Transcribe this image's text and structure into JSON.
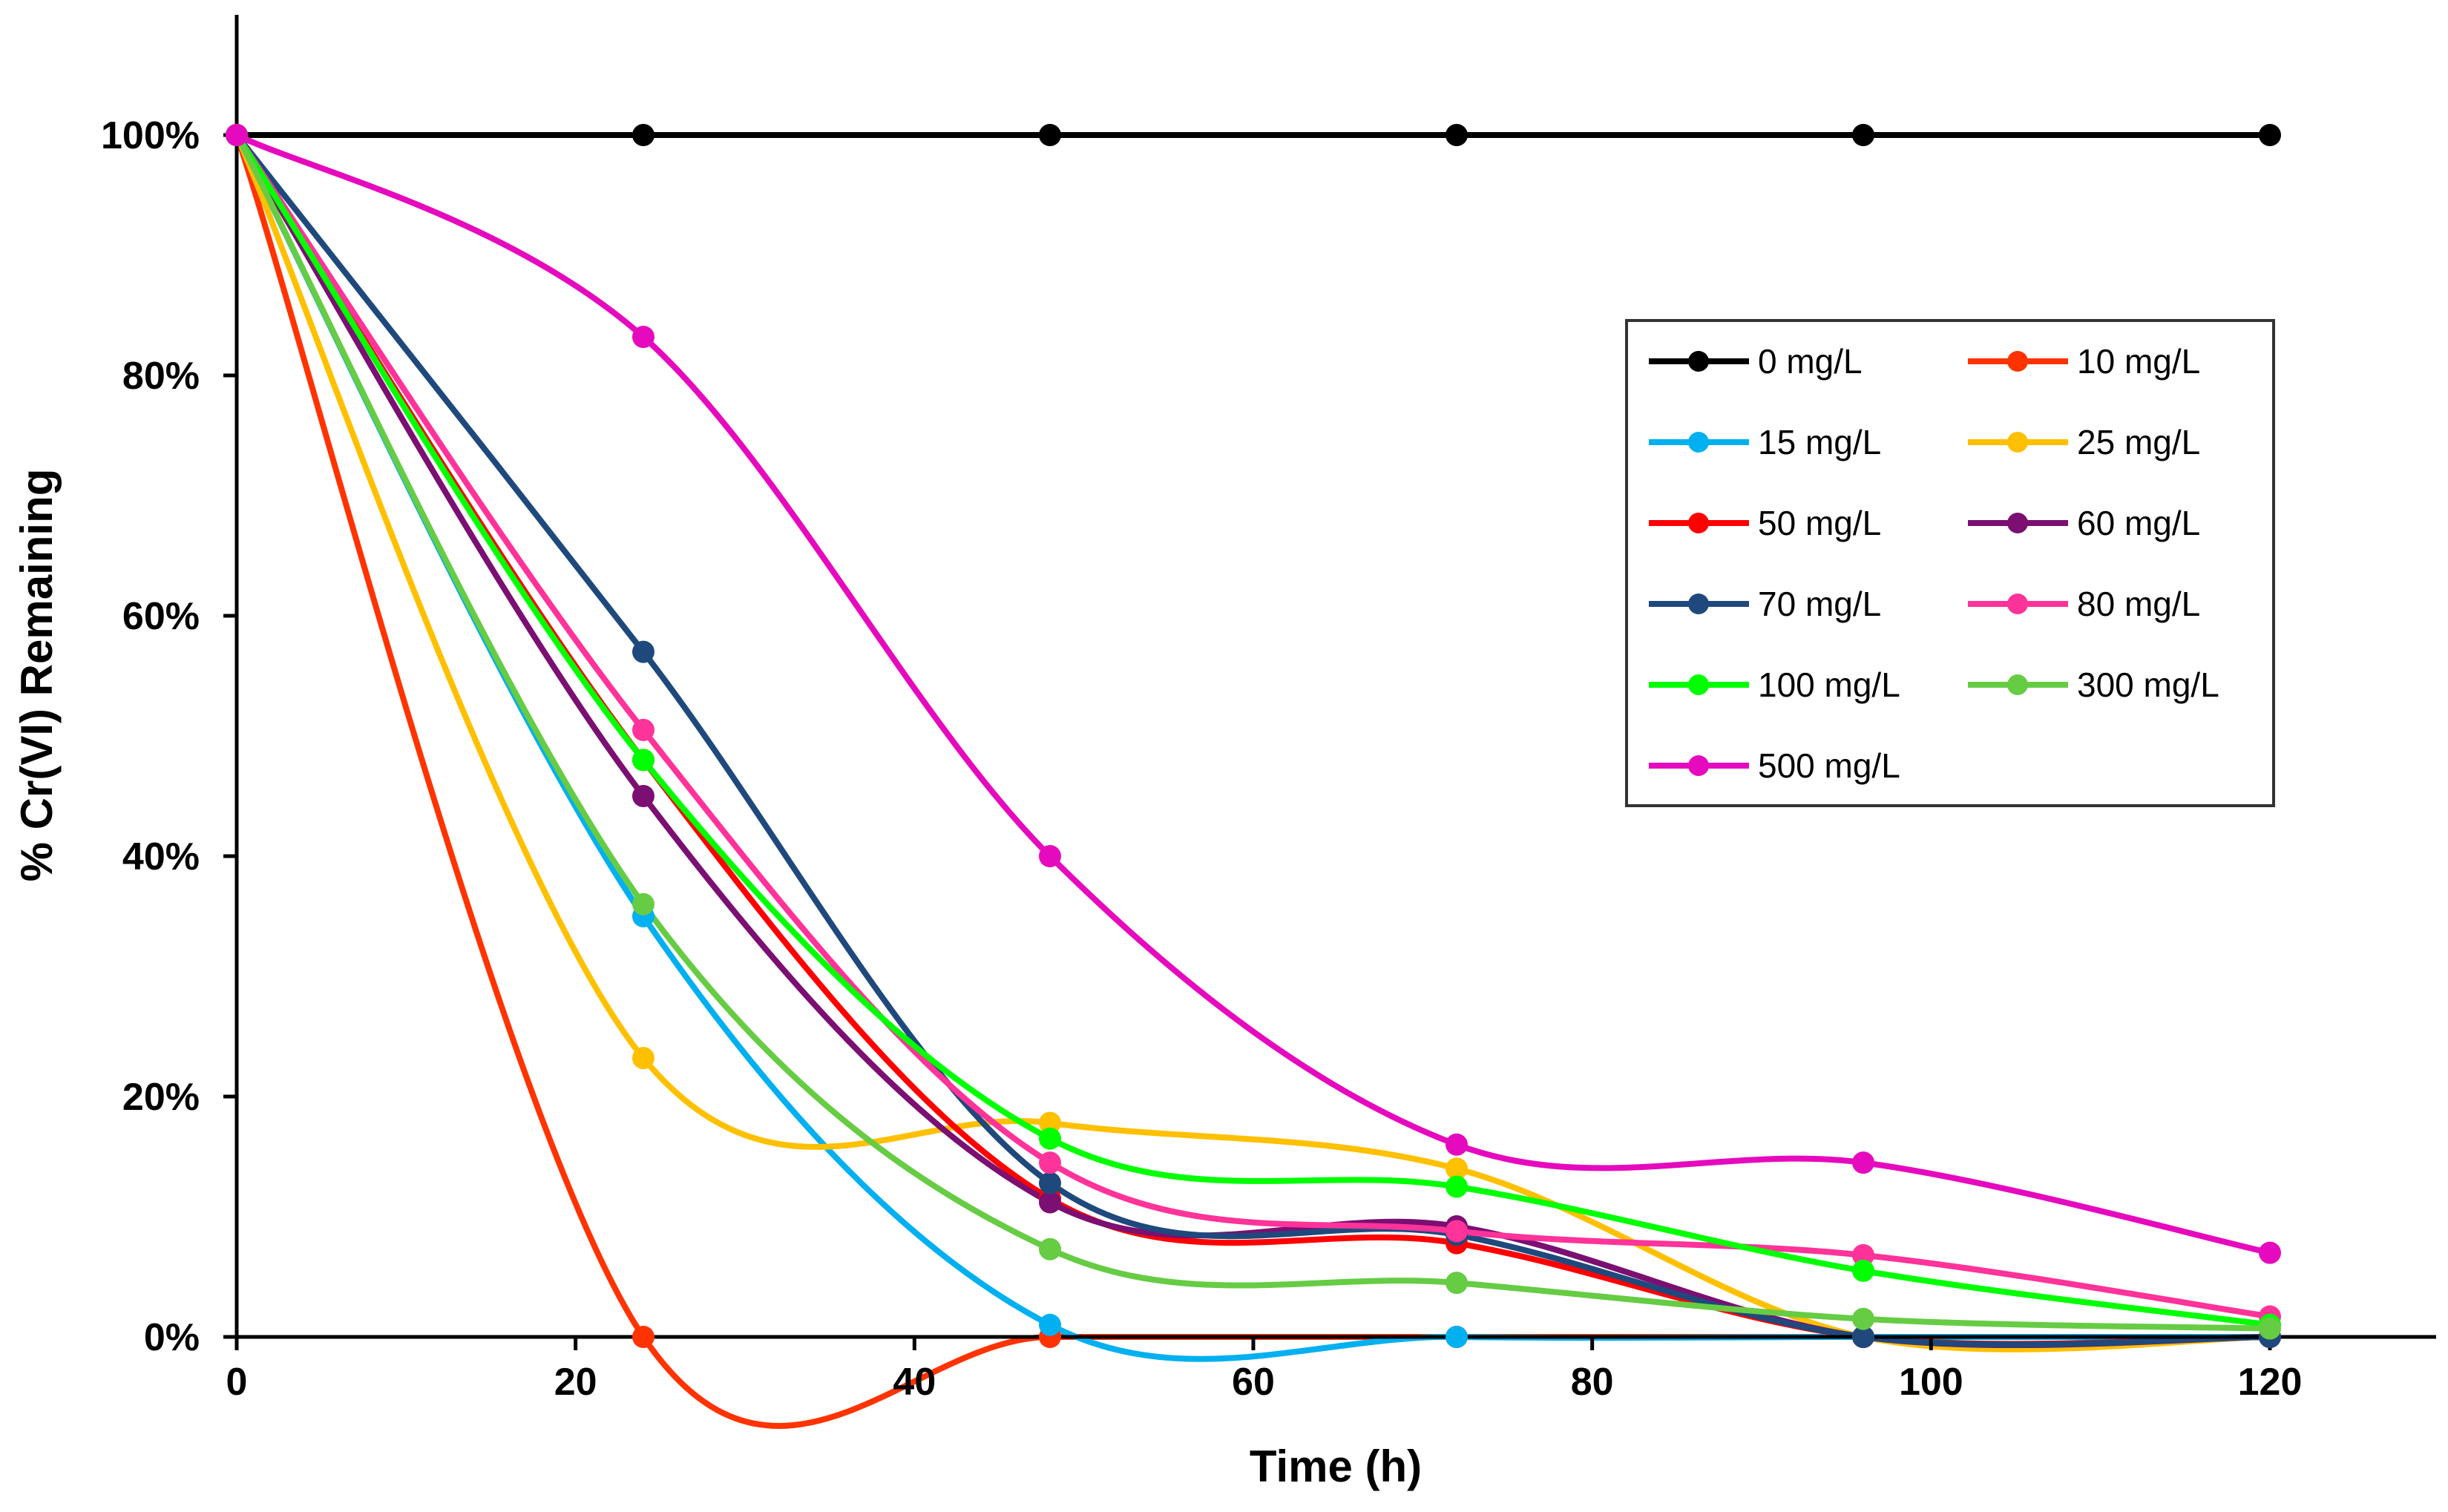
{
  "chart_data": {
    "type": "line",
    "title": "",
    "xlabel": "Time (h)",
    "ylabel": "% Cr(VI)  Remaining",
    "xlim": [
      0,
      130
    ],
    "ylim": [
      0,
      110
    ],
    "x_ticks": [
      0,
      20,
      40,
      60,
      80,
      100,
      120
    ],
    "x_tick_labels": [
      "0",
      "20",
      "40",
      "60",
      "80",
      "100",
      "120"
    ],
    "y_ticks": [
      0,
      20,
      40,
      60,
      80,
      100
    ],
    "y_tick_labels": [
      "0%",
      "20%",
      "40%",
      "60%",
      "80%",
      "100%"
    ],
    "grid": false,
    "smooth": true,
    "legend_position": "upper-right",
    "x": [
      0,
      24,
      48,
      72,
      96,
      120
    ],
    "series": [
      {
        "name": "0 mg/L",
        "color": "#000000",
        "values": [
          100,
          100,
          100,
          100,
          100,
          100
        ]
      },
      {
        "name": "10 mg/L",
        "color": "#FF3300",
        "values": [
          100,
          0,
          0,
          0,
          0,
          0
        ]
      },
      {
        "name": "15 mg/L",
        "color": "#00B0F0",
        "values": [
          100,
          35,
          1,
          0,
          0,
          0
        ]
      },
      {
        "name": "25 mg/L",
        "color": "#FFC000",
        "values": [
          100,
          23.2,
          17.8,
          14,
          0,
          0
        ]
      },
      {
        "name": "50 mg/L",
        "color": "#FF0000",
        "values": [
          100,
          48,
          11.5,
          7.8,
          0,
          0
        ]
      },
      {
        "name": "60 mg/L",
        "color": "#7B0F72",
        "values": [
          100,
          45,
          11.2,
          9.2,
          0,
          0
        ]
      },
      {
        "name": "70 mg/L",
        "color": "#1F497D",
        "values": [
          100,
          57,
          12.8,
          8.5,
          0,
          0
        ]
      },
      {
        "name": "80 mg/L",
        "color": "#FF3399",
        "values": [
          100,
          50.5,
          14.5,
          8.8,
          6.8,
          1.7
        ]
      },
      {
        "name": "100 mg/L",
        "color": "#00FF00",
        "values": [
          100,
          48,
          16.5,
          12.5,
          5.5,
          1
        ]
      },
      {
        "name": "300 mg/L",
        "color": "#66CC44",
        "values": [
          100,
          36,
          7.3,
          4.5,
          1.5,
          0.7
        ]
      },
      {
        "name": "500 mg/L",
        "color": "#E60ABE",
        "values": [
          100,
          83.2,
          40,
          16,
          14.5,
          7
        ]
      }
    ]
  }
}
